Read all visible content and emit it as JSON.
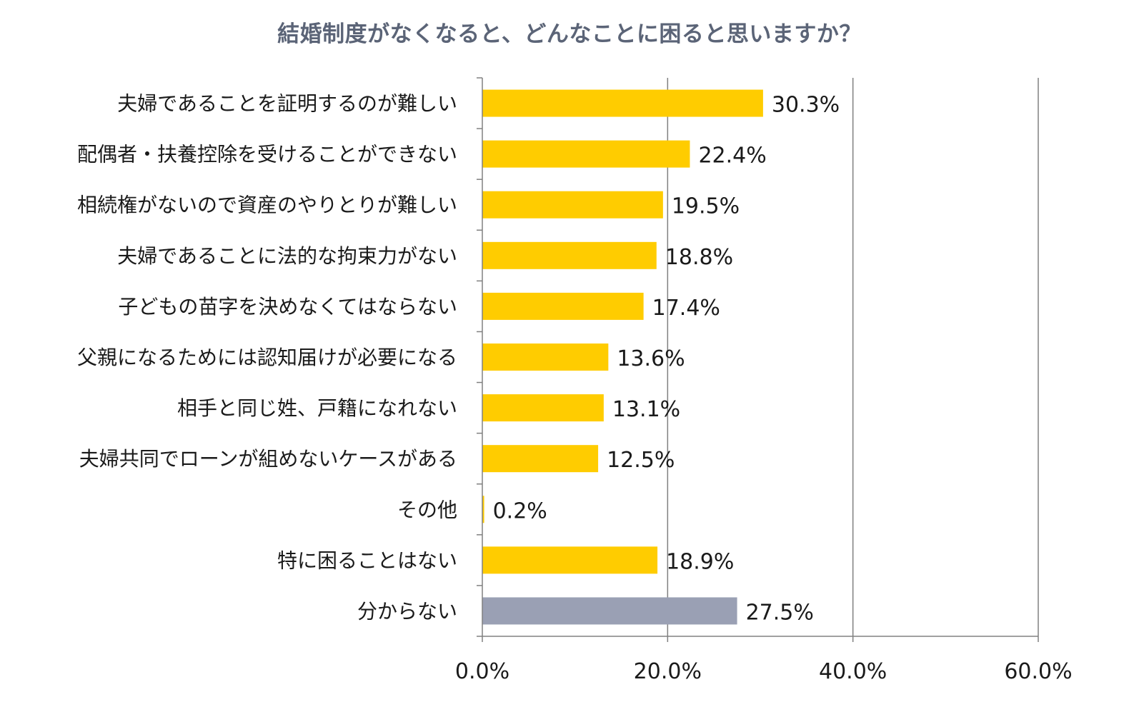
{
  "chart_data": {
    "type": "bar",
    "orientation": "horizontal",
    "title": "結婚制度がなくなると、どんなことに困ると思いますか？",
    "categories": [
      "夫婦であることを証明するのが難しい",
      "配偶者・扶養控除を受けることができない",
      "相続権がないので資産のやりとりが難しい",
      "夫婦であることに法的な拘束力がない",
      "子どもの苗字を決めなくてはならない",
      "父親になるためには認知届けが必要になる",
      "相手と同じ姓、戸籍になれない",
      "夫婦共同でローンが組めないケースがある",
      "その他",
      "特に困ることはない",
      "分からない"
    ],
    "values": [
      30.3,
      22.4,
      19.5,
      18.8,
      17.4,
      13.6,
      13.1,
      12.5,
      0.2,
      18.9,
      27.5
    ],
    "value_labels": [
      "30.3%",
      "22.4%",
      "19.5%",
      "18.8%",
      "17.4%",
      "13.6%",
      "13.1%",
      "12.5%",
      "0.2%",
      "18.9%",
      "27.5%"
    ],
    "bar_colors": [
      "#ffcc00",
      "#ffcc00",
      "#ffcc00",
      "#ffcc00",
      "#ffcc00",
      "#ffcc00",
      "#ffcc00",
      "#ffcc00",
      "#ffcc00",
      "#ffcc00",
      "#9aa0b4"
    ],
    "xlim": [
      0,
      60
    ],
    "xticks": [
      0,
      20,
      40,
      60
    ],
    "xtick_labels": [
      "0.0%",
      "20.0%",
      "40.0%",
      "60.0%"
    ],
    "grid": "vertical",
    "title_color": "#5b6477",
    "axis_color": "#808080",
    "gridline_color": "#808080"
  }
}
